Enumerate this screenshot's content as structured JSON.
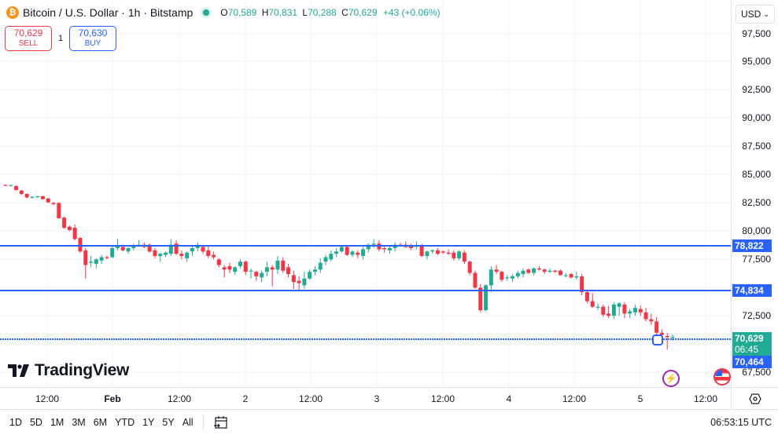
{
  "header": {
    "symbol_title": "Bitcoin / U.S. Dollar · 1h · Bitstamp",
    "coin_icon": "bitcoin-icon",
    "ohlc": {
      "open_label": "O",
      "open": "70,589",
      "high_label": "H",
      "high": "70,831",
      "low_label": "L",
      "low": "70,288",
      "close_label": "C",
      "close": "70,629",
      "change": "+43 (+0.06%)"
    }
  },
  "trade": {
    "sell_price": "70,629",
    "sell_label": "SELL",
    "spread": "1",
    "buy_price": "70,630",
    "buy_label": "BUY"
  },
  "price_axis": {
    "currency": "USD",
    "ticks": [
      "97,500",
      "95,000",
      "92,500",
      "90,000",
      "87,500",
      "85,000",
      "82,500",
      "80,000",
      "77,500",
      "72,500",
      "67,500"
    ],
    "labels": {
      "line_upper": "78,822",
      "line_lower": "74,834",
      "current_price": "70,629",
      "countdown": "06:45",
      "crosshair_price": "70,464"
    }
  },
  "time_axis": {
    "ticks": [
      "12:00",
      "Feb",
      "12:00",
      "2",
      "12:00",
      "3",
      "12:00",
      "4",
      "12:00",
      "5",
      "12:00"
    ]
  },
  "bottom_bar": {
    "ranges": [
      "1D",
      "5D",
      "1M",
      "3M",
      "6M",
      "YTD",
      "1Y",
      "5Y",
      "All"
    ],
    "clock": "06:53:15 UTC"
  },
  "branding": {
    "logo_text": "TradingView"
  },
  "colors": {
    "up": "#22ab94",
    "down": "#f23645",
    "line": "#2962ff",
    "grid": "#f0f3fa"
  },
  "chart_data": {
    "type": "candlestick",
    "title": "Bitcoin / U.S. Dollar · 1h · Bitstamp",
    "xlabel": "",
    "ylabel": "USD",
    "ylim": [
      66500,
      98500
    ],
    "grid": true,
    "horizontal_lines": [
      78822,
      74834,
      70629
    ],
    "x_tick_labels": [
      "12:00",
      "Feb",
      "12:00",
      "2",
      "12:00",
      "3",
      "12:00",
      "4",
      "12:00",
      "5",
      "12:00"
    ],
    "candles": [
      [
        84100,
        84150,
        84000,
        84050
      ],
      [
        84050,
        84100,
        83950,
        84100
      ],
      [
        84000,
        84050,
        83600,
        83650
      ],
      [
        83600,
        83650,
        83200,
        83300
      ],
      [
        83300,
        83350,
        82900,
        83000
      ],
      [
        83000,
        83100,
        82900,
        83050
      ],
      [
        83050,
        83100,
        82950,
        83100
      ],
      [
        83100,
        83150,
        82800,
        82850
      ],
      [
        82900,
        82950,
        82500,
        82550
      ],
      [
        82500,
        82600,
        82300,
        82400
      ],
      [
        82500,
        82550,
        81100,
        81150
      ],
      [
        81200,
        81300,
        80200,
        80300
      ],
      [
        80400,
        80500,
        80000,
        80100
      ],
      [
        80300,
        80600,
        79200,
        79300
      ],
      [
        79400,
        79500,
        78100,
        78200
      ],
      [
        78300,
        78500,
        75800,
        77000
      ],
      [
        77200,
        77800,
        76800,
        77300
      ],
      [
        77100,
        77600,
        76700,
        77500
      ],
      [
        77400,
        77900,
        77100,
        77700
      ],
      [
        77700,
        77850,
        77500,
        77650
      ],
      [
        77700,
        78700,
        77600,
        78500
      ],
      [
        78500,
        79300,
        78300,
        78700
      ],
      [
        78600,
        78800,
        78200,
        78300
      ],
      [
        78200,
        78600,
        78000,
        78500
      ],
      [
        78500,
        78900,
        78300,
        78700
      ],
      [
        78700,
        79200,
        78600,
        78800
      ],
      [
        78800,
        79000,
        78500,
        78600
      ],
      [
        78800,
        78900,
        78100,
        78200
      ],
      [
        78300,
        78500,
        77600,
        77800
      ],
      [
        77800,
        78100,
        77300,
        78000
      ],
      [
        77900,
        78200,
        77700,
        78100
      ],
      [
        78000,
        79300,
        77800,
        78800
      ],
      [
        78900,
        79200,
        77900,
        78000
      ],
      [
        78000,
        78300,
        77500,
        77800
      ],
      [
        77600,
        78200,
        77300,
        78100
      ],
      [
        78200,
        78700,
        77800,
        78500
      ],
      [
        78500,
        79000,
        78200,
        78700
      ],
      [
        78600,
        78800,
        78000,
        78200
      ],
      [
        78300,
        78700,
        77600,
        77800
      ],
      [
        77900,
        78200,
        77500,
        77700
      ],
      [
        77500,
        77600,
        76800,
        77000
      ],
      [
        76800,
        77000,
        75900,
        76600
      ],
      [
        76900,
        77200,
        76300,
        76600
      ],
      [
        76400,
        76900,
        76100,
        76800
      ],
      [
        76900,
        77500,
        76700,
        77300
      ],
      [
        77300,
        77400,
        76100,
        76400
      ],
      [
        76500,
        76700,
        75800,
        76500
      ],
      [
        76400,
        76500,
        75600,
        76000
      ],
      [
        75900,
        76500,
        75500,
        76300
      ],
      [
        76400,
        77300,
        76000,
        76800
      ],
      [
        76800,
        77000,
        75100,
        76600
      ],
      [
        76600,
        77800,
        76200,
        77400
      ],
      [
        77400,
        77700,
        76300,
        76500
      ],
      [
        76800,
        77100,
        75900,
        76200
      ],
      [
        76100,
        76500,
        74900,
        75500
      ],
      [
        75600,
        76000,
        74800,
        75400
      ],
      [
        75200,
        76400,
        74900,
        75800
      ],
      [
        75800,
        76600,
        75700,
        76400
      ],
      [
        76400,
        76900,
        76100,
        76600
      ],
      [
        76600,
        77600,
        76300,
        77200
      ],
      [
        77300,
        77900,
        77000,
        77700
      ],
      [
        77500,
        78300,
        77300,
        78000
      ],
      [
        78000,
        78500,
        77700,
        78200
      ],
      [
        78200,
        78700,
        78100,
        78600
      ],
      [
        78600,
        78700,
        77800,
        77900
      ],
      [
        77900,
        78300,
        77700,
        78200
      ],
      [
        78100,
        78300,
        77600,
        77900
      ],
      [
        77800,
        78600,
        77500,
        78400
      ],
      [
        78400,
        78900,
        78100,
        78800
      ],
      [
        78800,
        79300,
        78500,
        78900
      ],
      [
        78900,
        79200,
        78200,
        78400
      ],
      [
        78500,
        78700,
        78100,
        78400
      ],
      [
        78300,
        78700,
        78000,
        78500
      ],
      [
        78500,
        79000,
        78200,
        78800
      ],
      [
        78800,
        79000,
        78600,
        78700
      ],
      [
        78800,
        79100,
        78500,
        78600
      ],
      [
        78700,
        78900,
        78300,
        78500
      ],
      [
        78700,
        79100,
        78400,
        78700
      ],
      [
        78700,
        78900,
        77700,
        77800
      ],
      [
        77800,
        78300,
        77500,
        78200
      ],
      [
        78200,
        78400,
        78000,
        78300
      ],
      [
        78300,
        78500,
        77900,
        78000
      ],
      [
        78200,
        78300,
        78000,
        78100
      ],
      [
        78100,
        78400,
        77900,
        78000
      ],
      [
        78100,
        78300,
        77400,
        77600
      ],
      [
        77600,
        78300,
        77400,
        78200
      ],
      [
        78100,
        78300,
        77100,
        77300
      ],
      [
        77300,
        77400,
        76100,
        76300
      ],
      [
        76300,
        76500,
        74900,
        75000
      ],
      [
        75000,
        75300,
        72800,
        73000
      ],
      [
        73000,
        75300,
        72900,
        75200
      ],
      [
        75200,
        76900,
        74600,
        76600
      ],
      [
        76600,
        77000,
        76200,
        76400
      ],
      [
        76400,
        76500,
        75500,
        75700
      ],
      [
        75900,
        76100,
        75600,
        75900
      ],
      [
        75800,
        76200,
        75500,
        76000
      ],
      [
        76000,
        76500,
        75800,
        76300
      ],
      [
        76200,
        76700,
        75900,
        76500
      ],
      [
        76600,
        76700,
        76200,
        76300
      ],
      [
        76300,
        76800,
        76100,
        76700
      ],
      [
        76700,
        76900,
        76500,
        76600
      ],
      [
        76600,
        76700,
        76200,
        76400
      ],
      [
        76400,
        76700,
        76300,
        76500
      ],
      [
        76500,
        76600,
        76300,
        76400
      ],
      [
        76500,
        76600,
        76100,
        76100
      ],
      [
        76100,
        76300,
        75900,
        76100
      ],
      [
        76200,
        76300,
        75800,
        75900
      ],
      [
        75900,
        76400,
        75700,
        76000
      ],
      [
        76000,
        76200,
        74300,
        74600
      ],
      [
        74600,
        74800,
        73600,
        73800
      ],
      [
        73800,
        74500,
        73200,
        73300
      ],
      [
        73300,
        73600,
        73000,
        73300
      ],
      [
        73300,
        73500,
        72400,
        72600
      ],
      [
        72700,
        73400,
        72300,
        72500
      ],
      [
        72500,
        73700,
        72200,
        73500
      ],
      [
        73300,
        73700,
        72500,
        73600
      ],
      [
        73500,
        73700,
        72300,
        72700
      ],
      [
        72700,
        73100,
        72300,
        72900
      ],
      [
        72800,
        73500,
        72500,
        73200
      ],
      [
        73100,
        73400,
        72500,
        72800
      ],
      [
        72800,
        73200,
        72000,
        72200
      ],
      [
        72200,
        72700,
        71700,
        72000
      ],
      [
        72000,
        72400,
        70700,
        71000
      ],
      [
        71000,
        71300,
        70600,
        70800
      ],
      [
        70700,
        71000,
        69500,
        70600
      ],
      [
        70589,
        70831,
        70288,
        70629
      ]
    ]
  }
}
